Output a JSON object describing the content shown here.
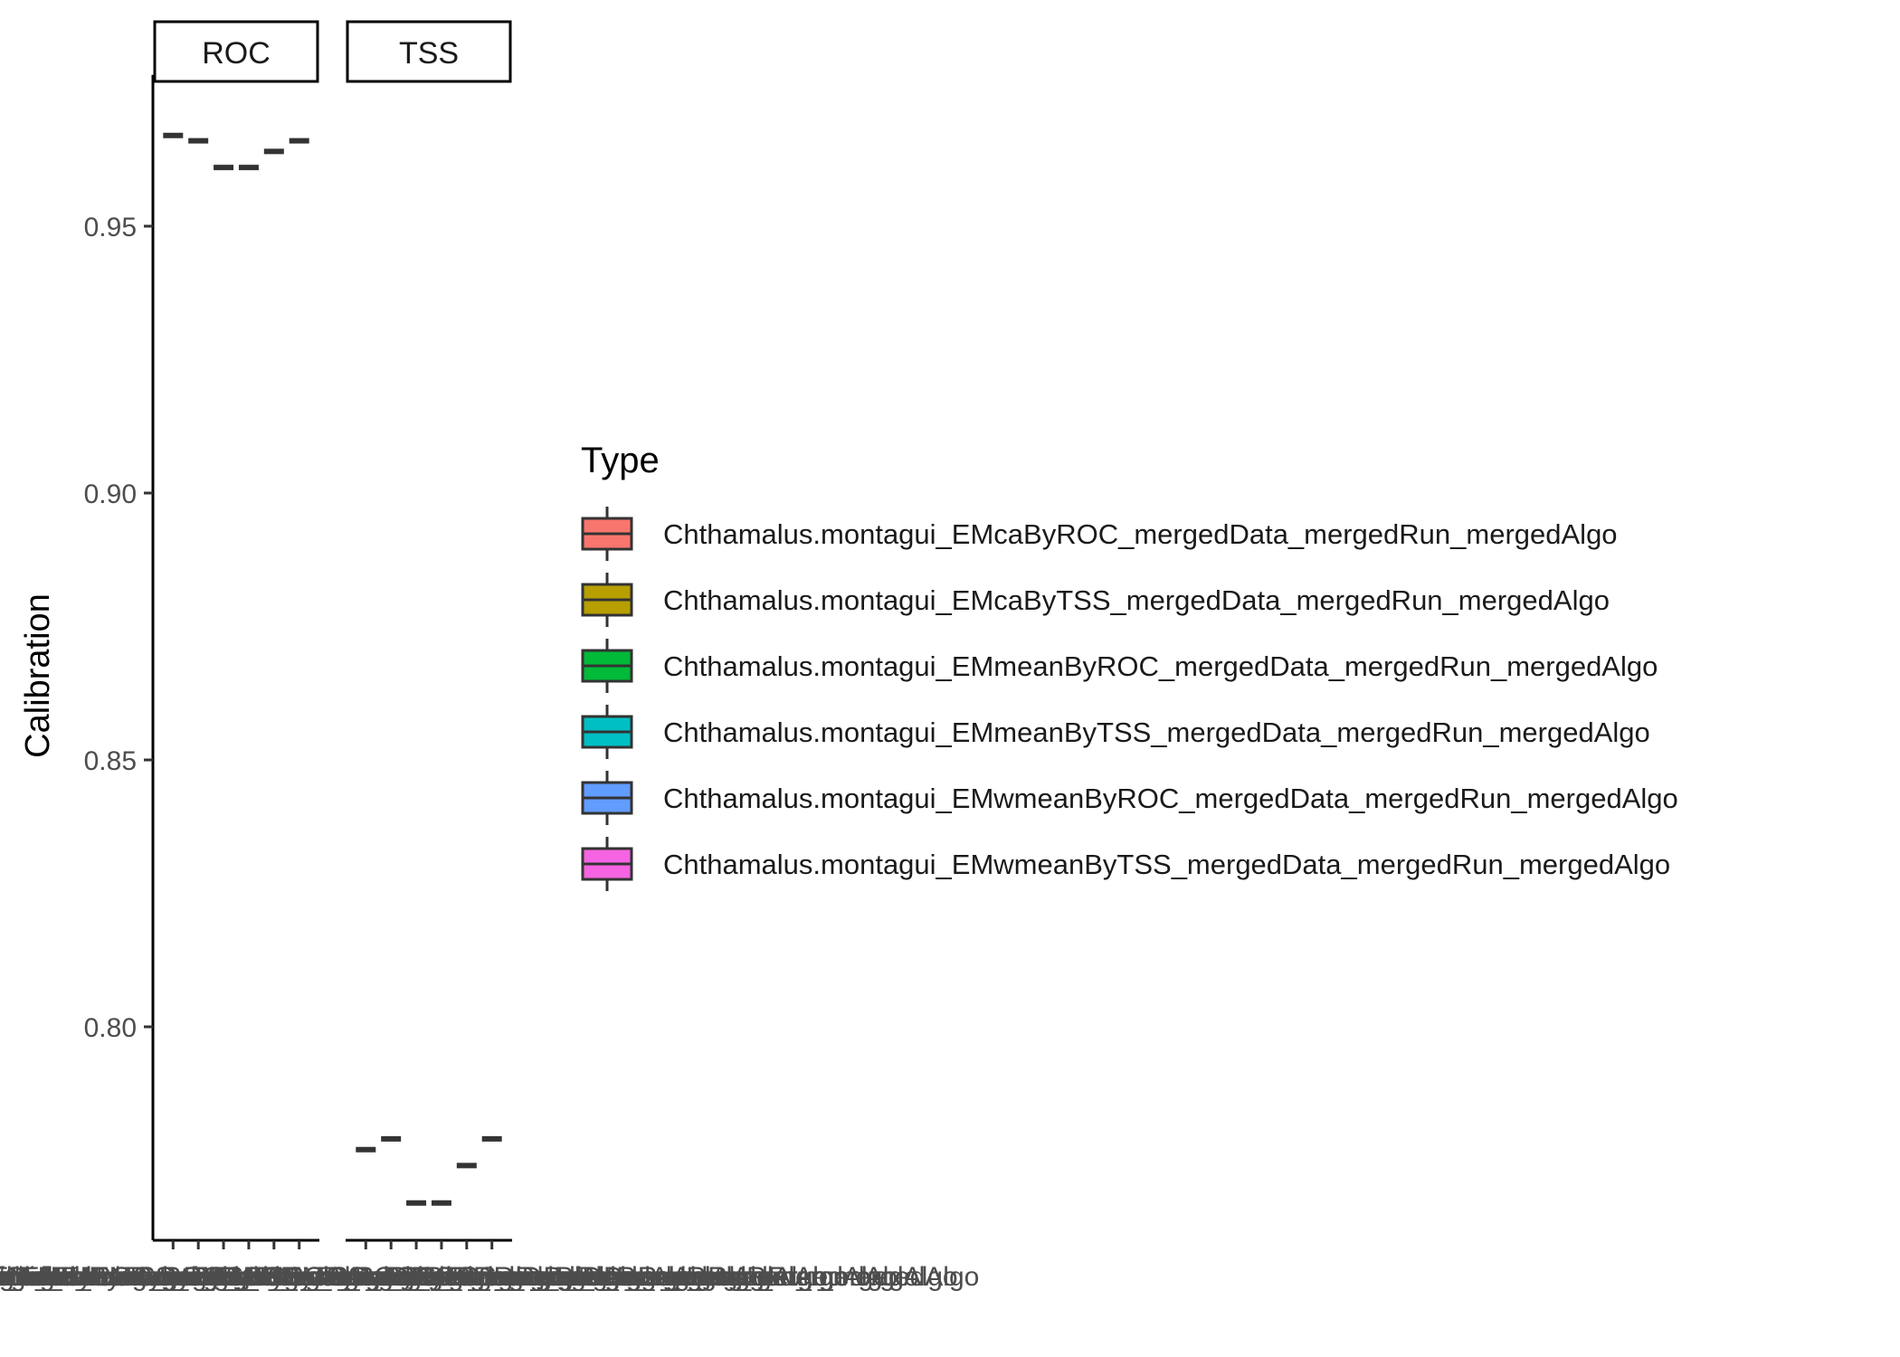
{
  "chart_data": {
    "type": "boxplot",
    "ylabel": "Calibration",
    "xlabel": "",
    "ylim": [
      0.76,
      0.978
    ],
    "y_ticks": [
      0.8,
      0.85,
      0.9,
      0.95
    ],
    "y_tick_labels": [
      "0.80",
      "0.85",
      "0.90",
      "0.95"
    ],
    "legend_title": "Type",
    "legend_position": "right",
    "grid": false,
    "categories": [
      "Chthamalus.montagui_EMcaByROC_mergedData_mergedRun_mergedAlgo",
      "Chthamalus.montagui_EMcaByTSS_mergedData_mergedRun_mergedAlgo",
      "Chthamalus.montagui_EMmeanByROC_mergedData_mergedRun_mergedAlgo",
      "Chthamalus.montagui_EMmeanByTSS_mergedData_mergedRun_mergedAlgo",
      "Chthamalus.montagui_EMwmeanByROC_mergedData_mergedRun_mergedAlgo",
      "Chthamalus.montagui_EMwmeanByTSS_mergedData_mergedRun_mergedAlgo"
    ],
    "colors": [
      "#F8766D",
      "#B79F00",
      "#00BA38",
      "#00BFC4",
      "#619CFF",
      "#F564E3"
    ],
    "panels": [
      {
        "name": "ROC",
        "values": [
          0.967,
          0.966,
          0.961,
          0.961,
          0.964,
          0.966
        ]
      },
      {
        "name": "TSS",
        "values": [
          0.777,
          0.779,
          0.767,
          0.767,
          0.774,
          0.779
        ]
      }
    ]
  }
}
